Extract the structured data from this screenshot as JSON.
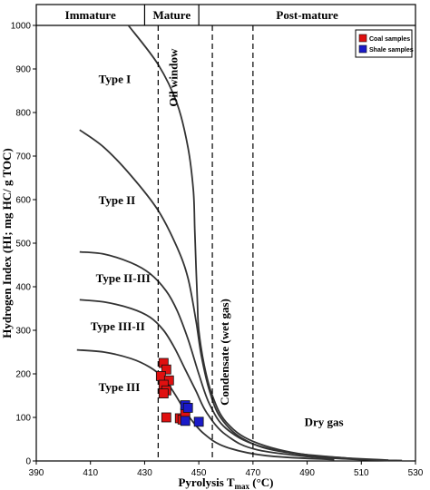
{
  "chart_data": {
    "type": "scatter",
    "title": "",
    "xlabel_prefix": "Pyrolysis T",
    "xlabel_sub": "max",
    "xlabel_suffix": " (°C)",
    "ylabel": "Hydrogen Index (HI; mg HC/ g TOC)",
    "xlim": [
      390,
      530
    ],
    "ylim": [
      0,
      1000
    ],
    "x_ticks": [
      390,
      410,
      430,
      450,
      470,
      490,
      510,
      530
    ],
    "y_ticks": [
      0,
      100,
      200,
      300,
      400,
      500,
      600,
      700,
      800,
      900,
      1000
    ],
    "maturity_zones": [
      {
        "label": "Immature",
        "x_range": [
          390,
          430
        ]
      },
      {
        "label": "Mature",
        "x_range": [
          430,
          450
        ]
      },
      {
        "label": "Post-mature",
        "x_range": [
          450,
          530
        ]
      }
    ],
    "boundaries": [
      {
        "x": 435,
        "style": "dashed"
      },
      {
        "x": 455,
        "style": "dashed"
      },
      {
        "x": 470,
        "style": "dashed"
      }
    ],
    "zone_annotations": [
      {
        "text": "Oil window",
        "x": 442,
        "y": 880,
        "rotated": true
      },
      {
        "text": "Condensate (wet gas)",
        "x": 461,
        "y": 250,
        "rotated": true
      },
      {
        "text": "Dry gas",
        "x": 489,
        "y": 80,
        "rotated": false
      }
    ],
    "kerogen_curves": [
      {
        "label": "Type I",
        "label_x": 413,
        "label_y": 868,
        "points": [
          [
            424,
            1000
          ],
          [
            435,
            910
          ],
          [
            442,
            820
          ],
          [
            446,
            720
          ],
          [
            448,
            620
          ],
          [
            448.5,
            530
          ],
          [
            449,
            440
          ],
          [
            449.5,
            360
          ],
          [
            450,
            300
          ],
          [
            452,
            220
          ],
          [
            455,
            150
          ],
          [
            460,
            90
          ],
          [
            470,
            45
          ],
          [
            490,
            14
          ],
          [
            520,
            2
          ]
        ]
      },
      {
        "label": "Type II",
        "label_x": 413,
        "label_y": 590,
        "points": [
          [
            406,
            760
          ],
          [
            415,
            720
          ],
          [
            425,
            655
          ],
          [
            435,
            575
          ],
          [
            442,
            490
          ],
          [
            446,
            420
          ],
          [
            449,
            320
          ],
          [
            451,
            240
          ],
          [
            454,
            160
          ],
          [
            458,
            100
          ],
          [
            466,
            52
          ],
          [
            480,
            22
          ],
          [
            510,
            4
          ],
          [
            525,
            1
          ]
        ]
      },
      {
        "label": "Type II-III",
        "label_x": 412,
        "label_y": 410,
        "points": [
          [
            406,
            480
          ],
          [
            415,
            475
          ],
          [
            425,
            455
          ],
          [
            432,
            430
          ],
          [
            438,
            390
          ],
          [
            442,
            345
          ],
          [
            446,
            280
          ],
          [
            450,
            200
          ],
          [
            454,
            130
          ],
          [
            460,
            75
          ],
          [
            472,
            35
          ],
          [
            495,
            9
          ],
          [
            520,
            1
          ]
        ]
      },
      {
        "label": "Type III-II",
        "label_x": 410,
        "label_y": 300,
        "points": [
          [
            406,
            370
          ],
          [
            415,
            365
          ],
          [
            425,
            350
          ],
          [
            432,
            330
          ],
          [
            437,
            300
          ],
          [
            441,
            260
          ],
          [
            445,
            210
          ],
          [
            449,
            160
          ],
          [
            453,
            110
          ],
          [
            460,
            60
          ],
          [
            472,
            25
          ],
          [
            500,
            4
          ]
        ]
      },
      {
        "label": "Type III",
        "label_x": 413,
        "label_y": 160,
        "points": [
          [
            405,
            255
          ],
          [
            415,
            250
          ],
          [
            425,
            235
          ],
          [
            432,
            215
          ],
          [
            437,
            190
          ],
          [
            441,
            155
          ],
          [
            446,
            105
          ],
          [
            452,
            62
          ],
          [
            460,
            32
          ],
          [
            475,
            12
          ],
          [
            500,
            3
          ]
        ]
      }
    ],
    "series": [
      {
        "name": "Coal samples",
        "color": "#e01010",
        "marker": "square",
        "points": [
          [
            437,
            225
          ],
          [
            438,
            210
          ],
          [
            436,
            195
          ],
          [
            439,
            185
          ],
          [
            437,
            175
          ],
          [
            438,
            162
          ],
          [
            437,
            155
          ],
          [
            438,
            100
          ],
          [
            443,
            98
          ],
          [
            444,
            95
          ],
          [
            445,
            110
          ]
        ]
      },
      {
        "name": "Shale samples",
        "color": "#1a1ac8",
        "marker": "square",
        "points": [
          [
            445,
            128
          ],
          [
            446,
            122
          ],
          [
            445,
            92
          ],
          [
            450,
            90
          ]
        ]
      }
    ],
    "legend_position": "top-right",
    "grid": false
  }
}
